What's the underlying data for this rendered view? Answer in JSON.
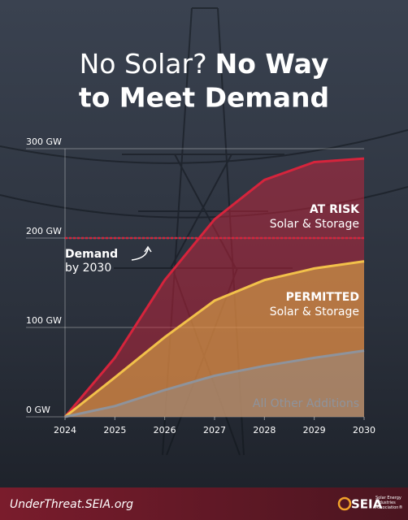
{
  "chart_data": {
    "type": "area",
    "title_light": "No Solar?",
    "title_bold_1": "No Way",
    "title_bold_2": "to Meet Demand",
    "x": [
      2024,
      2025,
      2026,
      2027,
      2028,
      2029,
      2030
    ],
    "xlim": [
      2024,
      2030
    ],
    "xticks": [
      2024,
      2025,
      2026,
      2027,
      2028,
      2029,
      2030
    ],
    "ylim": [
      0,
      300
    ],
    "yticks": [
      {
        "value": 0,
        "label": "0 GW"
      },
      {
        "value": 100,
        "label": "100 GW"
      },
      {
        "value": 200,
        "label": "200 GW"
      },
      {
        "value": 300,
        "label": "300 GW"
      }
    ],
    "grid": true,
    "series": [
      {
        "name": "AT RISK",
        "sublabel": "Solar & Storage",
        "color": "#d6243c",
        "values": [
          0,
          66,
          153,
          221,
          265,
          285,
          289
        ]
      },
      {
        "name": "PERMITTED",
        "sublabel": "Solar & Storage",
        "color": "#f2c14a",
        "values": [
          0,
          44,
          89,
          130,
          153,
          166,
          174
        ]
      },
      {
        "name": "All Other Additions",
        "color": "#8e939c",
        "values": [
          0,
          12,
          30,
          46,
          57,
          66,
          74
        ]
      }
    ],
    "demand": 200,
    "demand_label": "Demand",
    "demand_sublabel": "by 2030",
    "demand_color": "#d6243c",
    "footer_url": "UnderThreat.SEIA.org",
    "logo_name": "SEIA",
    "logo_tagline": "Solar Energy Industries Association®"
  }
}
